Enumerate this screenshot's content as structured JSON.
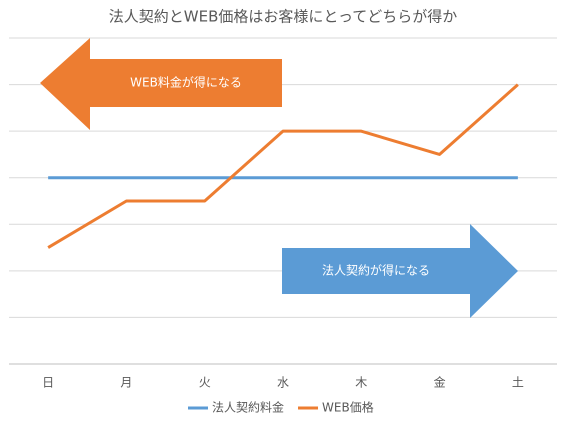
{
  "chart_data": {
    "type": "line",
    "title": "法人契約とWEB価格はお客様にとってどちらが得か",
    "categories": [
      "日",
      "月",
      "火",
      "水",
      "木",
      "金",
      "土"
    ],
    "series": [
      {
        "name": "法人契約料金",
        "color": "#5b9bd5",
        "values": [
          4,
          4,
          4,
          4,
          4,
          4,
          4
        ]
      },
      {
        "name": "WEB価格",
        "color": "#ed7d31",
        "values": [
          2.5,
          3.5,
          3.5,
          5,
          5,
          4.5,
          6
        ]
      }
    ],
    "ylim": [
      0,
      7
    ],
    "yticks": [
      0,
      1,
      2,
      3,
      4,
      5,
      6,
      7
    ],
    "grid": true,
    "legend": "bottom",
    "annotations": [
      {
        "text": "WEB料金が得になる",
        "color": "#ed7d31",
        "direction": "left"
      },
      {
        "text": "法人契約が得になる",
        "color": "#5b9bd5",
        "direction": "right"
      }
    ]
  }
}
